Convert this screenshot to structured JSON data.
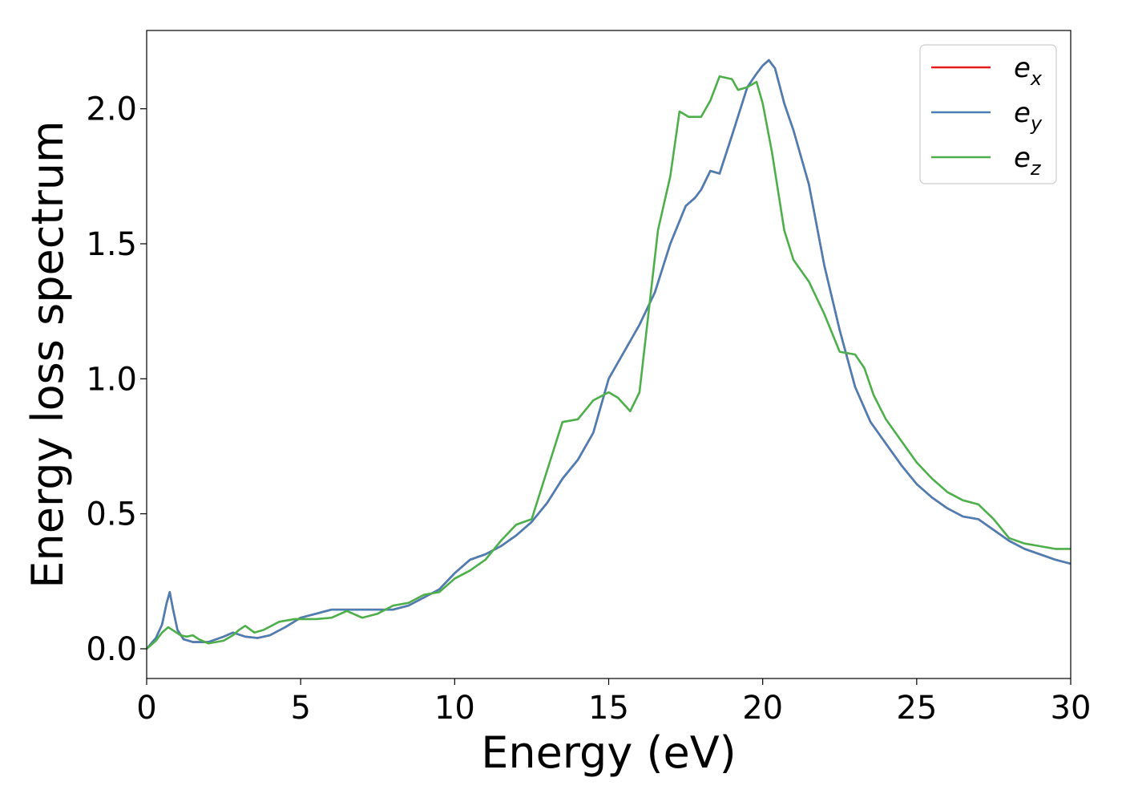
{
  "chart_data": {
    "type": "line",
    "xlabel": "Energy (eV)",
    "ylabel": "Energy loss spectrum",
    "xlim": [
      0,
      30
    ],
    "ylim": [
      -0.11,
      2.29
    ],
    "xticks": [
      0,
      5,
      10,
      15,
      20,
      25,
      30
    ],
    "xtick_labels": [
      "0",
      "5",
      "10",
      "15",
      "20",
      "25",
      "30"
    ],
    "yticks": [
      0.0,
      0.5,
      1.0,
      1.5,
      2.0
    ],
    "ytick_labels": [
      "0.0",
      "0.5",
      "1.0",
      "1.5",
      "2.0"
    ],
    "grid": false,
    "legend_position": "top-right",
    "series": [
      {
        "name": "e_x",
        "label_main": "e",
        "label_sub": "x",
        "color": "#e41a1c",
        "x": [
          0,
          0.3,
          0.5,
          0.65,
          0.75,
          0.85,
          1.0,
          1.2,
          1.5,
          2.0,
          2.5,
          2.8,
          3.2,
          3.6,
          4.0,
          4.5,
          5.0,
          5.5,
          6.0,
          7.0,
          8.0,
          8.5,
          9.0,
          9.5,
          10.0,
          10.5,
          11.0,
          11.5,
          12.0,
          12.5,
          13.0,
          13.5,
          14.0,
          14.5,
          15.0,
          15.5,
          16.0,
          16.5,
          17.0,
          17.5,
          17.8,
          18.0,
          18.3,
          18.6,
          19.0,
          19.5,
          19.8,
          20.0,
          20.2,
          20.4,
          20.7,
          21.0,
          21.5,
          22.0,
          22.5,
          23.0,
          23.5,
          24.0,
          24.5,
          25.0,
          25.5,
          26.0,
          26.5,
          27.0,
          27.5,
          28.0,
          28.5,
          29.0,
          29.5,
          30.0
        ],
        "y": [
          0.0,
          0.04,
          0.09,
          0.17,
          0.21,
          0.15,
          0.07,
          0.035,
          0.025,
          0.025,
          0.045,
          0.06,
          0.045,
          0.04,
          0.05,
          0.08,
          0.115,
          0.13,
          0.145,
          0.145,
          0.145,
          0.16,
          0.19,
          0.22,
          0.28,
          0.33,
          0.35,
          0.38,
          0.42,
          0.47,
          0.54,
          0.63,
          0.7,
          0.8,
          1.0,
          1.1,
          1.2,
          1.32,
          1.5,
          1.64,
          1.67,
          1.7,
          1.77,
          1.76,
          1.9,
          2.08,
          2.13,
          2.16,
          2.18,
          2.15,
          2.02,
          1.92,
          1.72,
          1.42,
          1.18,
          0.97,
          0.84,
          0.76,
          0.68,
          0.61,
          0.56,
          0.52,
          0.49,
          0.48,
          0.44,
          0.4,
          0.37,
          0.35,
          0.33,
          0.315
        ]
      },
      {
        "name": "e_y",
        "label_main": "e",
        "label_sub": "y",
        "color": "#4a7fb5",
        "x": [
          0,
          0.3,
          0.5,
          0.65,
          0.75,
          0.85,
          1.0,
          1.2,
          1.5,
          2.0,
          2.5,
          2.8,
          3.2,
          3.6,
          4.0,
          4.5,
          5.0,
          5.5,
          6.0,
          7.0,
          8.0,
          8.5,
          9.0,
          9.5,
          10.0,
          10.5,
          11.0,
          11.5,
          12.0,
          12.5,
          13.0,
          13.5,
          14.0,
          14.5,
          15.0,
          15.5,
          16.0,
          16.5,
          17.0,
          17.5,
          17.8,
          18.0,
          18.3,
          18.6,
          19.0,
          19.5,
          19.8,
          20.0,
          20.2,
          20.4,
          20.7,
          21.0,
          21.5,
          22.0,
          22.5,
          23.0,
          23.5,
          24.0,
          24.5,
          25.0,
          25.5,
          26.0,
          26.5,
          27.0,
          27.5,
          28.0,
          28.5,
          29.0,
          29.5,
          30.0
        ],
        "y": [
          0.0,
          0.04,
          0.09,
          0.17,
          0.21,
          0.15,
          0.07,
          0.035,
          0.025,
          0.025,
          0.045,
          0.06,
          0.045,
          0.04,
          0.05,
          0.08,
          0.115,
          0.13,
          0.145,
          0.145,
          0.145,
          0.16,
          0.19,
          0.22,
          0.28,
          0.33,
          0.35,
          0.38,
          0.42,
          0.47,
          0.54,
          0.63,
          0.7,
          0.8,
          1.0,
          1.1,
          1.2,
          1.32,
          1.5,
          1.64,
          1.67,
          1.7,
          1.77,
          1.76,
          1.9,
          2.08,
          2.13,
          2.16,
          2.18,
          2.15,
          2.02,
          1.92,
          1.72,
          1.42,
          1.18,
          0.97,
          0.84,
          0.76,
          0.68,
          0.61,
          0.56,
          0.52,
          0.49,
          0.48,
          0.44,
          0.4,
          0.37,
          0.35,
          0.33,
          0.315
        ]
      },
      {
        "name": "e_z",
        "label_main": "e",
        "label_sub": "z",
        "color": "#4daf4a",
        "x": [
          0,
          0.3,
          0.5,
          0.7,
          0.9,
          1.1,
          1.3,
          1.5,
          1.7,
          2.0,
          2.5,
          2.8,
          3.0,
          3.2,
          3.5,
          3.8,
          4.3,
          4.8,
          5.5,
          6.0,
          6.5,
          7.0,
          7.5,
          8.0,
          8.5,
          9.0,
          9.5,
          10.0,
          10.5,
          11.0,
          11.5,
          12.0,
          12.5,
          13.0,
          13.5,
          14.0,
          14.5,
          15.0,
          15.3,
          15.7,
          16.0,
          16.3,
          16.6,
          17.0,
          17.3,
          17.6,
          18.0,
          18.3,
          18.6,
          19.0,
          19.2,
          19.5,
          19.8,
          20.0,
          20.3,
          20.7,
          21.0,
          21.5,
          22.0,
          22.5,
          23.0,
          23.3,
          23.6,
          24.0,
          24.5,
          25.0,
          25.5,
          26.0,
          26.5,
          27.0,
          27.5,
          28.0,
          28.5,
          29.0,
          29.5,
          30.0
        ],
        "y": [
          0.0,
          0.03,
          0.06,
          0.08,
          0.065,
          0.05,
          0.045,
          0.05,
          0.035,
          0.02,
          0.03,
          0.05,
          0.07,
          0.085,
          0.06,
          0.07,
          0.1,
          0.11,
          0.11,
          0.115,
          0.14,
          0.115,
          0.13,
          0.16,
          0.17,
          0.2,
          0.21,
          0.26,
          0.29,
          0.33,
          0.4,
          0.46,
          0.48,
          0.66,
          0.84,
          0.85,
          0.92,
          0.95,
          0.93,
          0.88,
          0.95,
          1.25,
          1.55,
          1.75,
          1.99,
          1.97,
          1.97,
          2.03,
          2.12,
          2.11,
          2.07,
          2.08,
          2.1,
          2.02,
          1.84,
          1.55,
          1.44,
          1.36,
          1.24,
          1.1,
          1.09,
          1.04,
          0.94,
          0.85,
          0.77,
          0.69,
          0.63,
          0.58,
          0.55,
          0.535,
          0.48,
          0.41,
          0.39,
          0.38,
          0.37,
          0.37
        ]
      }
    ]
  }
}
